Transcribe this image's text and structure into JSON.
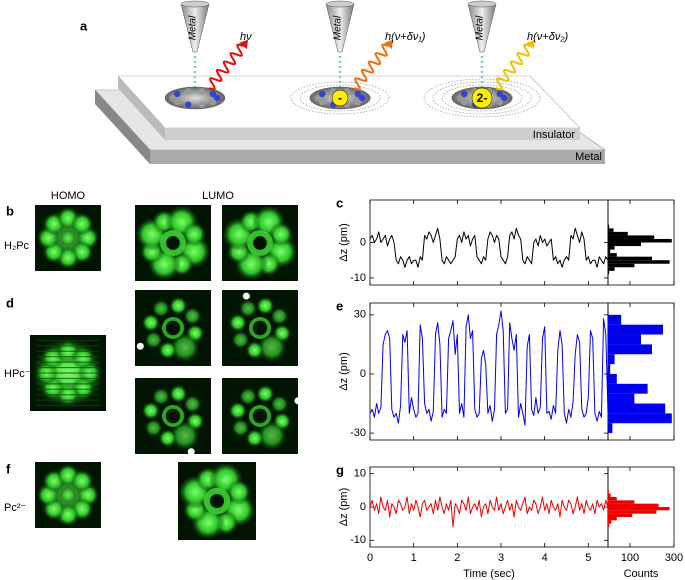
{
  "panel_a": {
    "label": "a",
    "tips": [
      "Metal",
      "Metal",
      "Metal"
    ],
    "photons": [
      "hν",
      "h(ν+δν₁)",
      "h(ν+δν₂)"
    ],
    "charges": [
      "-",
      "2-"
    ],
    "insulator": "Insulator",
    "substrate": "Metal"
  },
  "orbitals": {
    "homo": "HOMO",
    "lumo": "LUMO",
    "rows": [
      {
        "label": "b",
        "molecule": "H₂Pc"
      },
      {
        "label": "d",
        "molecule": "HPc⁻"
      },
      {
        "label": "f",
        "molecule": "Pc²⁻"
      }
    ]
  },
  "chart_data": [
    {
      "type": "line",
      "label": "c",
      "ylabel": "Δz (pm)",
      "ylim": [
        -12,
        12
      ],
      "yticks": [
        -10,
        0
      ],
      "xlim": [
        0,
        5.45
      ],
      "xticks": [
        0,
        1,
        2,
        3,
        4,
        5
      ],
      "xtick_labels": false,
      "x": [
        0,
        0.05,
        0.1,
        0.15,
        0.2,
        0.25,
        0.3,
        0.35,
        0.4,
        0.45,
        0.5,
        0.55,
        0.6,
        0.65,
        0.7,
        0.75,
        0.8,
        0.85,
        0.9,
        0.95,
        1,
        1.05,
        1.1,
        1.15,
        1.2,
        1.25,
        1.3,
        1.35,
        1.4,
        1.45,
        1.5,
        1.55,
        1.6,
        1.65,
        1.7,
        1.75,
        1.8,
        1.85,
        1.9,
        1.95,
        2,
        2.05,
        2.1,
        2.15,
        2.2,
        2.25,
        2.3,
        2.35,
        2.4,
        2.45,
        2.5,
        2.55,
        2.6,
        2.65,
        2.7,
        2.75,
        2.8,
        2.85,
        2.9,
        2.95,
        3,
        3.05,
        3.1,
        3.15,
        3.2,
        3.25,
        3.3,
        3.35,
        3.4,
        3.45,
        3.5,
        3.55,
        3.6,
        3.65,
        3.7,
        3.75,
        3.8,
        3.85,
        3.9,
        3.95,
        4,
        4.05,
        4.1,
        4.15,
        4.2,
        4.25,
        4.3,
        4.35,
        4.4,
        4.45,
        4.5,
        4.55,
        4.6,
        4.65,
        4.7,
        4.75,
        4.8,
        4.85,
        4.9,
        4.95,
        5,
        5.05,
        5.1,
        5.15,
        5.2,
        5.25,
        5.3,
        5.35,
        5.4,
        5.45
      ],
      "series": [
        {
          "color": "#000000",
          "values": [
            1,
            2,
            0,
            1,
            3,
            0,
            1,
            2,
            -1,
            1,
            2,
            0,
            -5,
            -6,
            -4,
            -5,
            -7,
            -5,
            -4,
            -6,
            -5,
            -5,
            -7,
            -4,
            -5,
            2,
            1,
            3,
            2,
            0,
            2,
            4,
            1,
            -5,
            -6,
            -4,
            -5,
            -6,
            -5,
            -4,
            1,
            2,
            0,
            3,
            1,
            2,
            -1,
            1,
            2,
            -4,
            -5,
            -6,
            -4,
            -5,
            1,
            3,
            2,
            0,
            2,
            1,
            -4,
            -5,
            -6,
            -4,
            2,
            3,
            1,
            4,
            2,
            1,
            -5,
            -6,
            -4,
            -5,
            -6,
            0,
            1,
            -1,
            2,
            0,
            1,
            -1,
            0,
            1,
            -5,
            -4,
            -6,
            -5,
            -7,
            -5,
            -4,
            -5,
            2,
            1,
            4,
            2,
            0,
            3,
            1,
            -5,
            -4,
            -6,
            -5,
            -5,
            -7,
            -4,
            -5,
            -6,
            -4,
            -5
          ]
        }
      ],
      "histogram": {
        "color": "#000000",
        "bins": [
          -9,
          -8,
          -7,
          -6,
          -5,
          -4,
          -3,
          -2,
          -1,
          0,
          1,
          2,
          3,
          4,
          5
        ],
        "counts": [
          5,
          30,
          120,
          280,
          200,
          40,
          10,
          30,
          150,
          290,
          210,
          90,
          25,
          5
        ],
        "xlim": [
          0,
          300
        ],
        "xticks": [
          100,
          300
        ],
        "xtick_labels": false
      }
    },
    {
      "type": "line",
      "label": "e",
      "ylabel": "Δz (pm)",
      "ylim": [
        -33.5,
        36
      ],
      "yticks": [
        -30,
        0,
        30
      ],
      "xlim": [
        0,
        5.45
      ],
      "xticks": [
        0,
        1,
        2,
        3,
        4,
        5
      ],
      "xtick_labels": false,
      "x": [
        0,
        0.05,
        0.1,
        0.15,
        0.2,
        0.25,
        0.3,
        0.35,
        0.4,
        0.45,
        0.5,
        0.55,
        0.6,
        0.65,
        0.7,
        0.75,
        0.8,
        0.85,
        0.9,
        0.95,
        1,
        1.05,
        1.1,
        1.15,
        1.2,
        1.25,
        1.3,
        1.35,
        1.4,
        1.45,
        1.5,
        1.55,
        1.6,
        1.65,
        1.7,
        1.75,
        1.8,
        1.85,
        1.9,
        1.95,
        2,
        2.05,
        2.1,
        2.15,
        2.2,
        2.25,
        2.3,
        2.35,
        2.4,
        2.45,
        2.5,
        2.55,
        2.6,
        2.65,
        2.7,
        2.75,
        2.8,
        2.85,
        2.9,
        2.95,
        3,
        3.05,
        3.1,
        3.15,
        3.2,
        3.25,
        3.3,
        3.35,
        3.4,
        3.45,
        3.5,
        3.55,
        3.6,
        3.65,
        3.7,
        3.75,
        3.8,
        3.85,
        3.9,
        3.95,
        4,
        4.05,
        4.1,
        4.15,
        4.2,
        4.25,
        4.3,
        4.35,
        4.4,
        4.45,
        4.5,
        4.55,
        4.6,
        4.65,
        4.7,
        4.75,
        4.8,
        4.85,
        4.9,
        4.95,
        5,
        5.05,
        5.1,
        5.15,
        5.2,
        5.25,
        5.3,
        5.35,
        5.4,
        5.45
      ],
      "series": [
        {
          "color": "#0000ee",
          "values": [
            -20,
            -18,
            -22,
            -15,
            -20,
            -17,
            15,
            20,
            22,
            18,
            -18,
            -22,
            -20,
            -25,
            -16,
            20,
            16,
            22,
            -20,
            -12,
            -18,
            -22,
            -20,
            25,
            18,
            -15,
            -20,
            -18,
            -24,
            -19,
            20,
            26,
            15,
            -22,
            -18,
            -20,
            18,
            22,
            27,
            10,
            20,
            -20,
            -15,
            -22,
            24,
            30,
            18,
            22,
            -18,
            -22,
            -20,
            8,
            12,
            5,
            -20,
            -16,
            -24,
            -18,
            20,
            25,
            32,
            22,
            -20,
            -18,
            26,
            18,
            12,
            20,
            -22,
            -15,
            -20,
            -26,
            14,
            20,
            -18,
            -21,
            -12,
            -20,
            -17,
            18,
            24,
            -20,
            -19,
            -23,
            -16,
            -20,
            12,
            22,
            15,
            -20,
            -25,
            -18,
            -22,
            -14,
            10,
            20,
            16,
            -18,
            -22,
            -20,
            -12,
            22,
            18,
            -20,
            -24,
            -19,
            -22,
            28,
            20,
            -20
          ]
        }
      ],
      "histogram": {
        "color": "#0000ee",
        "bins": [
          -30,
          -25,
          -20,
          -15,
          -10,
          -5,
          0,
          5,
          10,
          15,
          20,
          25,
          30
        ],
        "counts": [
          20,
          290,
          260,
          120,
          180,
          40,
          10,
          30,
          200,
          150,
          250,
          60
        ],
        "xlim": [
          0,
          300
        ],
        "xticks": [
          100,
          300
        ],
        "xtick_labels": false
      }
    },
    {
      "type": "line",
      "label": "g",
      "ylabel": "Δz (pm)",
      "xlabel": "Time (sec)",
      "ylim": [
        -12,
        12
      ],
      "yticks": [
        -10,
        0,
        10
      ],
      "xlim": [
        0,
        5.45
      ],
      "xticks": [
        0,
        1,
        2,
        3,
        4,
        5
      ],
      "xtick_labels": true,
      "x": [
        0,
        0.05,
        0.1,
        0.15,
        0.2,
        0.25,
        0.3,
        0.35,
        0.4,
        0.45,
        0.5,
        0.55,
        0.6,
        0.65,
        0.7,
        0.75,
        0.8,
        0.85,
        0.9,
        0.95,
        1,
        1.05,
        1.1,
        1.15,
        1.2,
        1.25,
        1.3,
        1.35,
        1.4,
        1.45,
        1.5,
        1.55,
        1.6,
        1.65,
        1.7,
        1.75,
        1.8,
        1.85,
        1.9,
        1.95,
        2,
        2.05,
        2.1,
        2.15,
        2.2,
        2.25,
        2.3,
        2.35,
        2.4,
        2.45,
        2.5,
        2.55,
        2.6,
        2.65,
        2.7,
        2.75,
        2.8,
        2.85,
        2.9,
        2.95,
        3,
        3.05,
        3.1,
        3.15,
        3.2,
        3.25,
        3.3,
        3.35,
        3.4,
        3.45,
        3.5,
        3.55,
        3.6,
        3.65,
        3.7,
        3.75,
        3.8,
        3.85,
        3.9,
        3.95,
        4,
        4.05,
        4.1,
        4.15,
        4.2,
        4.25,
        4.3,
        4.35,
        4.4,
        4.45,
        4.5,
        4.55,
        4.6,
        4.65,
        4.7,
        4.75,
        4.8,
        4.85,
        4.9,
        4.95,
        5,
        5.05,
        5.1,
        5.15,
        5.2,
        5.25,
        5.3,
        5.35,
        5.4,
        5.45
      ],
      "series": [
        {
          "color": "#ee0000",
          "values": [
            0,
            2,
            -1,
            1,
            -2,
            3,
            0,
            -1,
            2,
            -3,
            1,
            0,
            -2,
            2,
            1,
            -1,
            0,
            3,
            -2,
            1,
            -1,
            2,
            0,
            -3,
            1,
            2,
            -1,
            0,
            1,
            -2,
            2,
            -1,
            3,
            0,
            -2,
            1,
            -1,
            2,
            -6,
            1,
            0,
            -2,
            2,
            1,
            -1,
            3,
            -2,
            0,
            1,
            -1,
            2,
            -3,
            0,
            1,
            -2,
            2,
            0,
            -1,
            3,
            -1,
            1,
            -2,
            0,
            2,
            -1,
            1,
            -3,
            2,
            0,
            -1,
            1,
            3,
            -2,
            0,
            -1,
            2,
            1,
            -2,
            0,
            3,
            -1,
            1,
            -2,
            2,
            0,
            -1,
            1,
            -3,
            2,
            0,
            -1,
            2,
            1,
            -2,
            0,
            3,
            -1,
            1,
            -2,
            2,
            0,
            -1,
            1,
            -2,
            2,
            0,
            1,
            -1,
            2,
            0
          ]
        }
      ],
      "histogram": {
        "color": "#ee0000",
        "xlabel": "Counts",
        "bins": [
          -6,
          -5,
          -4,
          -3,
          -2,
          -1,
          0,
          1,
          2,
          3,
          4,
          5
        ],
        "counts": [
          5,
          15,
          40,
          110,
          220,
          280,
          230,
          120,
          40,
          12,
          4
        ],
        "xlim": [
          0,
          300
        ],
        "xticks": [
          100,
          300
        ],
        "xtick_labels": true
      }
    }
  ]
}
